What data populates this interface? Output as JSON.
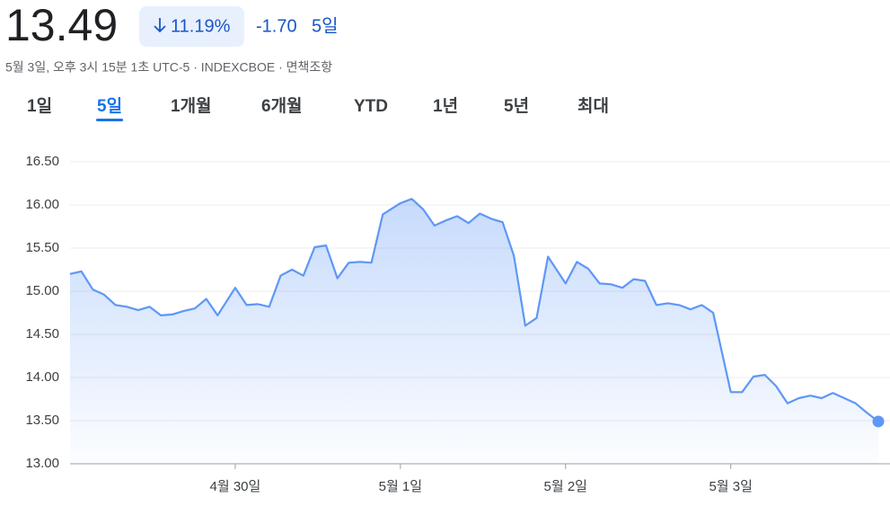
{
  "header": {
    "price": "13.49",
    "change_percent": "11.19%",
    "change": "-1.70",
    "period": "5일",
    "subtitle": "5월 3일, 오후 3시 15분 1초 UTC-5 · INDEXCBOE · 면책조항"
  },
  "tabs": [
    "1일",
    "5일",
    "1개월",
    "6개월",
    "YTD",
    "1년",
    "5년",
    "최대"
  ],
  "selected_tab": 1,
  "chart_data": {
    "type": "area",
    "color": "#5e97f6",
    "grid": true,
    "categories": [
      null,
      null,
      null,
      null,
      null,
      null,
      null,
      null,
      null,
      null,
      null,
      null,
      null,
      null,
      "4월 30일",
      null,
      null,
      null,
      null,
      null,
      null,
      null,
      null,
      null,
      null,
      null,
      null,
      null,
      "5월 1일",
      null,
      null,
      null,
      null,
      null,
      null,
      null,
      null,
      null,
      null,
      null,
      null,
      null,
      "5월 2일",
      null,
      null,
      null,
      null,
      null,
      null,
      null,
      null,
      null,
      null,
      null,
      null,
      null,
      "5월 3일",
      null,
      null,
      null,
      null,
      null,
      null,
      null,
      null,
      null,
      null,
      null,
      null,
      null
    ],
    "values": [
      15.2,
      15.23,
      15.02,
      14.96,
      14.84,
      14.82,
      14.78,
      14.82,
      14.72,
      14.73,
      14.77,
      14.8,
      14.91,
      14.72,
      15.04,
      14.84,
      14.85,
      14.82,
      15.18,
      15.25,
      15.18,
      15.51,
      15.53,
      15.15,
      15.33,
      15.34,
      15.33,
      15.89,
      16.02,
      16.07,
      15.95,
      15.76,
      15.82,
      15.87,
      15.79,
      15.9,
      15.84,
      15.8,
      15.41,
      14.6,
      14.69,
      15.4,
      15.09,
      15.34,
      15.26,
      15.09,
      15.08,
      15.04,
      15.14,
      15.12,
      14.84,
      14.86,
      14.84,
      14.79,
      14.84,
      14.75,
      13.83,
      13.83,
      14.01,
      14.03,
      13.9,
      13.7,
      13.76,
      13.79,
      13.76,
      13.82,
      13.76,
      13.7,
      13.59,
      13.49
    ],
    "ylim": [
      13,
      16.5
    ],
    "yticks": [
      {
        "value": 13,
        "label": "13.00"
      },
      {
        "value": 13.5,
        "label": "13.50"
      },
      {
        "value": 14,
        "label": "14.00"
      },
      {
        "value": 14.5,
        "label": "14.50"
      },
      {
        "value": 15,
        "label": "15.00"
      },
      {
        "value": 15.5,
        "label": "15.50"
      },
      {
        "value": 16,
        "label": "16.00"
      },
      {
        "value": 16.5,
        "label": "16.50"
      }
    ]
  }
}
